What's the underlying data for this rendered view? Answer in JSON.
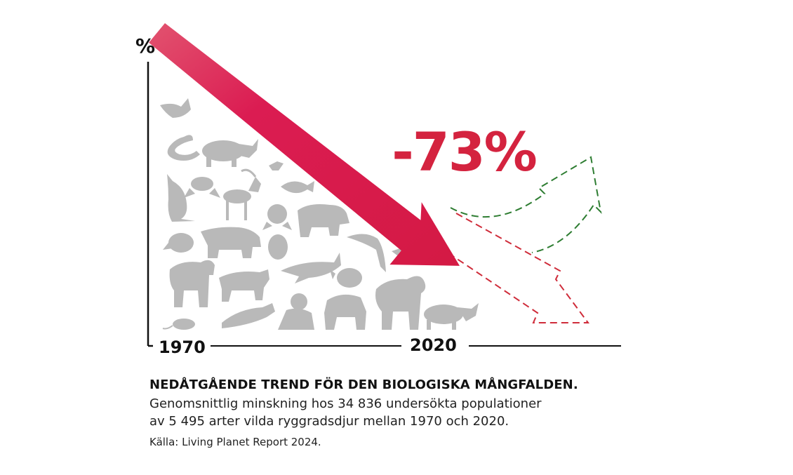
{
  "chart_data": {
    "type": "line",
    "y_axis_label": "%",
    "x": [
      "1970",
      "2020"
    ],
    "x_tick_labels": [
      "1970",
      "2020"
    ],
    "values": [
      100,
      27
    ],
    "change_label": "-73%",
    "grid": false,
    "legend": "none",
    "colors": {
      "trend_arrow": "#d81b4a",
      "decline_scenario": "#cf2c3a",
      "recovery_scenario": "#2e7d32",
      "animals": "#b9b9b9",
      "axis": "#111111"
    }
  },
  "animal_icons": [
    "bird-icon",
    "snake-icon",
    "rhino-icon",
    "kangaroo-icon",
    "frog-icon",
    "antelope-icon",
    "fish-icon",
    "bear-icon",
    "polar-bear-icon",
    "owl-icon",
    "dolphin-icon",
    "elephant-icon",
    "tiger-icon",
    "shark-icon",
    "turtle-icon",
    "bat-icon",
    "seal-icon",
    "panda-icon",
    "gorilla-icon",
    "mouse-icon"
  ],
  "caption": {
    "title": "NEDÅTGÅENDE TREND FÖR DEN BIOLOGISKA MÅNGFALDEN.",
    "line1": "Genomsnittlig minskning hos 34 836 undersökta populationer",
    "line2": "av 5 495 arter vilda ryggradsdjur mellan 1970 och 2020.",
    "source": "Källa: Living Planet Report 2024."
  }
}
